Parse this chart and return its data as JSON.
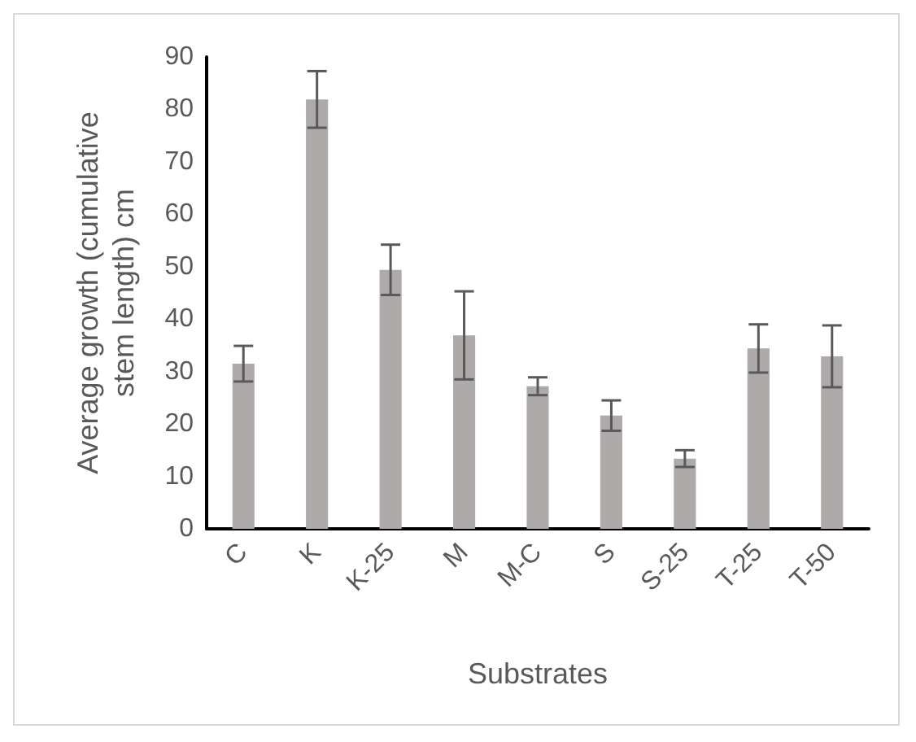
{
  "chart_data": {
    "type": "bar",
    "xlabel": "Substrates",
    "ylabel": "Average growth (cumulative\nstem length) cm",
    "categories": [
      "C",
      "K",
      "K-25",
      "M",
      "M-C",
      "S",
      "S-25",
      "T-25",
      "T-50"
    ],
    "values": [
      31.5,
      81.9,
      49.4,
      36.9,
      27.2,
      21.6,
      13.4,
      34.4,
      32.9
    ],
    "errors": [
      3.4,
      5.4,
      4.8,
      8.4,
      1.7,
      2.9,
      1.6,
      4.6,
      5.9
    ],
    "color": "#aeaaaa",
    "ylim": [
      0,
      90
    ],
    "yticks": [
      0,
      10,
      20,
      30,
      40,
      50,
      60,
      70,
      80,
      90
    ],
    "grid": false
  }
}
